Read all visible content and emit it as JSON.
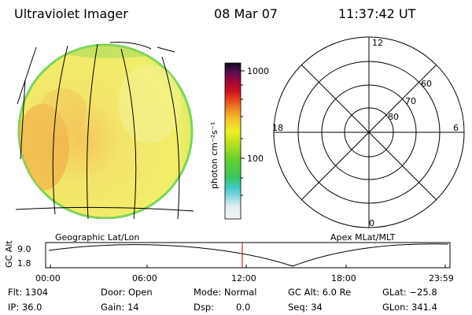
{
  "header": {
    "instrument": "Ultraviolet Imager",
    "date": "08 Mar 07",
    "time": "11:37:42 UT"
  },
  "colorbar": {
    "unit_label": "photon cm⁻²s⁻¹",
    "ticks": [
      {
        "label": "1000",
        "value": 1000
      },
      {
        "label": "100",
        "value": 100
      }
    ]
  },
  "polar_plot": {
    "mlt_labels": [
      "12",
      "18",
      "6",
      "0"
    ],
    "mlat_labels": [
      "60",
      "70",
      "80"
    ]
  },
  "panel_labels": {
    "left": "Geographic Lat/Lon",
    "right": "Apex MLat/MLT"
  },
  "altitude_plot": {
    "ylabel": "GC Alt",
    "yticks": [
      "9.0",
      "1.8"
    ],
    "xticks": [
      "00:00",
      "06:00",
      "12:00",
      "18:00",
      "23:59"
    ],
    "marker_time": "11:37:42",
    "marker_color": "#c00000"
  },
  "status": {
    "flt": "Flt: 1304",
    "ip": "IP: 36.0",
    "door": "Door: Open",
    "gain": "Gain: 14",
    "mode": "Mode: Normal",
    "dsp_label": "Dsp:",
    "dsp_value": "0.0",
    "gc_alt": "GC Alt: 6.0 Re",
    "seq": "Seq: 34",
    "glat": "GLat: −25.8",
    "glon": "GLon: 341.4"
  },
  "colors": {
    "disk_main": "#f2ee6a",
    "disk_warm": "#f0b24a",
    "disk_edge": "#7cd35a"
  }
}
